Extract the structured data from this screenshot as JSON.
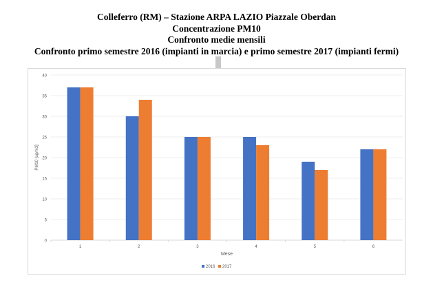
{
  "title_lines": [
    "Colleferro (RM) – Stazione ARPA LAZIO Piazzale Oberdan",
    "Concentrazione PM10",
    "Confronto medie mensili",
    "Confronto primo semestre 2016 (impianti in marcia) e primo semestre 2017 (impianti fermi)"
  ],
  "chart_data": {
    "type": "bar",
    "categories": [
      "1",
      "2",
      "3",
      "4",
      "5",
      "6"
    ],
    "series": [
      {
        "name": "2016",
        "color": "#4472c4",
        "values": [
          37,
          30,
          25,
          25,
          19,
          22
        ]
      },
      {
        "name": "2017",
        "color": "#ed7d31",
        "values": [
          37,
          34,
          25,
          23,
          17,
          22
        ]
      }
    ],
    "xlabel": "Mese",
    "ylabel": "PM10 [ug/m3]",
    "ylim": [
      0,
      40
    ],
    "yticks": [
      "0",
      "5",
      "10",
      "15",
      "20",
      "25",
      "30",
      "35",
      "40"
    ],
    "grid": true,
    "legend": "bottom"
  }
}
